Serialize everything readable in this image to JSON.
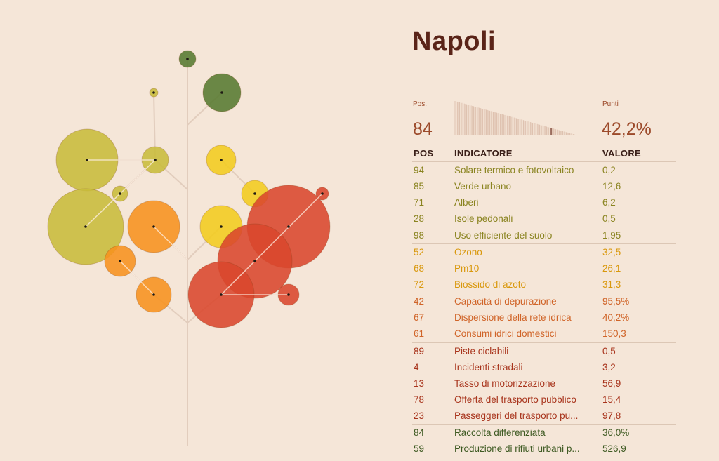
{
  "city": "Napoli",
  "summary": {
    "pos_label": "Pos.",
    "pos_value": "84",
    "points_label": "Punti",
    "points_value": "42,2%",
    "spark_highlight": 84,
    "spark_total": 106
  },
  "headers": {
    "pos": "POS",
    "indicator": "INDICATORE",
    "value": "VALORE"
  },
  "colors": {
    "group1": "#8a8420",
    "group2": "#d9980c",
    "group3": "#d06428",
    "group4": "#a8341c",
    "group5": "#3e5a22",
    "title": "#5a2418"
  },
  "rows": [
    {
      "pos": "94",
      "name": "Solare termico e fotovoltaico",
      "value": "0,2",
      "group": 1
    },
    {
      "pos": "85",
      "name": "Verde urbano",
      "value": "12,6",
      "group": 1
    },
    {
      "pos": "71",
      "name": "Alberi",
      "value": "6,2",
      "group": 1
    },
    {
      "pos": "28",
      "name": "Isole pedonali",
      "value": "0,5",
      "group": 1
    },
    {
      "pos": "98",
      "name": "Uso efficiente del suolo",
      "value": "1,95",
      "group": 1
    },
    {
      "pos": "52",
      "name": "Ozono",
      "value": "32,5",
      "group": 2
    },
    {
      "pos": "68",
      "name": "Pm10",
      "value": "26,1",
      "group": 2
    },
    {
      "pos": "72",
      "name": "Biossido di azoto",
      "value": "31,3",
      "group": 2
    },
    {
      "pos": "42",
      "name": "Capacità di depurazione",
      "value": "95,5%",
      "group": 3
    },
    {
      "pos": "67",
      "name": "Dispersione della rete idrica",
      "value": "40,2%",
      "group": 3
    },
    {
      "pos": "61",
      "name": "Consumi idrici domestici",
      "value": "150,3",
      "group": 3
    },
    {
      "pos": "89",
      "name": "Piste ciclabili",
      "value": "0,5",
      "group": 4
    },
    {
      "pos": "4",
      "name": "Incidenti stradali",
      "value": "3,2",
      "group": 4
    },
    {
      "pos": "13",
      "name": "Tasso di motorizzazione",
      "value": "56,9",
      "group": 4
    },
    {
      "pos": "78",
      "name": "Offerta del trasporto pubblico",
      "value": "15,4",
      "group": 4
    },
    {
      "pos": "23",
      "name": "Passeggeri del trasporto pu...",
      "value": "97,8",
      "group": 4
    },
    {
      "pos": "84",
      "name": "Raccolta differenziata",
      "value": "36,0%",
      "group": 5
    },
    {
      "pos": "59",
      "name": "Produzione di rifiuti urbani p...",
      "value": "526,9",
      "group": 5
    }
  ],
  "chart_data": {
    "type": "bubble-tree",
    "bubbles": [
      {
        "group": "green",
        "color": "#567a30",
        "size": 1
      },
      {
        "group": "green",
        "color": "#567a30",
        "size": 4
      },
      {
        "group": "olive",
        "color": "#c8bc3a",
        "size": 0.2
      },
      {
        "group": "olive",
        "color": "#c8bc3a",
        "size": 6
      },
      {
        "group": "olive",
        "color": "#c8bc3a",
        "size": 1.2
      },
      {
        "group": "olive",
        "color": "#c8bc3a",
        "size": 0.5
      },
      {
        "group": "olive",
        "color": "#c8bc3a",
        "size": 9
      },
      {
        "group": "yellow",
        "color": "#f3cc1e",
        "size": 1.7
      },
      {
        "group": "yellow",
        "color": "#f3cc1e",
        "size": 1.4
      },
      {
        "group": "yellow",
        "color": "#f3cc1e",
        "size": 3.6
      },
      {
        "group": "orange",
        "color": "#f7921e",
        "size": 5
      },
      {
        "group": "orange",
        "color": "#f7921e",
        "size": 1.7
      },
      {
        "group": "orange",
        "color": "#f7921e",
        "size": 2.4
      },
      {
        "group": "red",
        "color": "#d9472c",
        "size": 0.3
      },
      {
        "group": "red",
        "color": "#d9472c",
        "size": 12
      },
      {
        "group": "red",
        "color": "#d9472c",
        "size": 10
      },
      {
        "group": "red",
        "color": "#d9472c",
        "size": 8
      },
      {
        "group": "red",
        "color": "#d9472c",
        "size": 0.9
      }
    ]
  }
}
